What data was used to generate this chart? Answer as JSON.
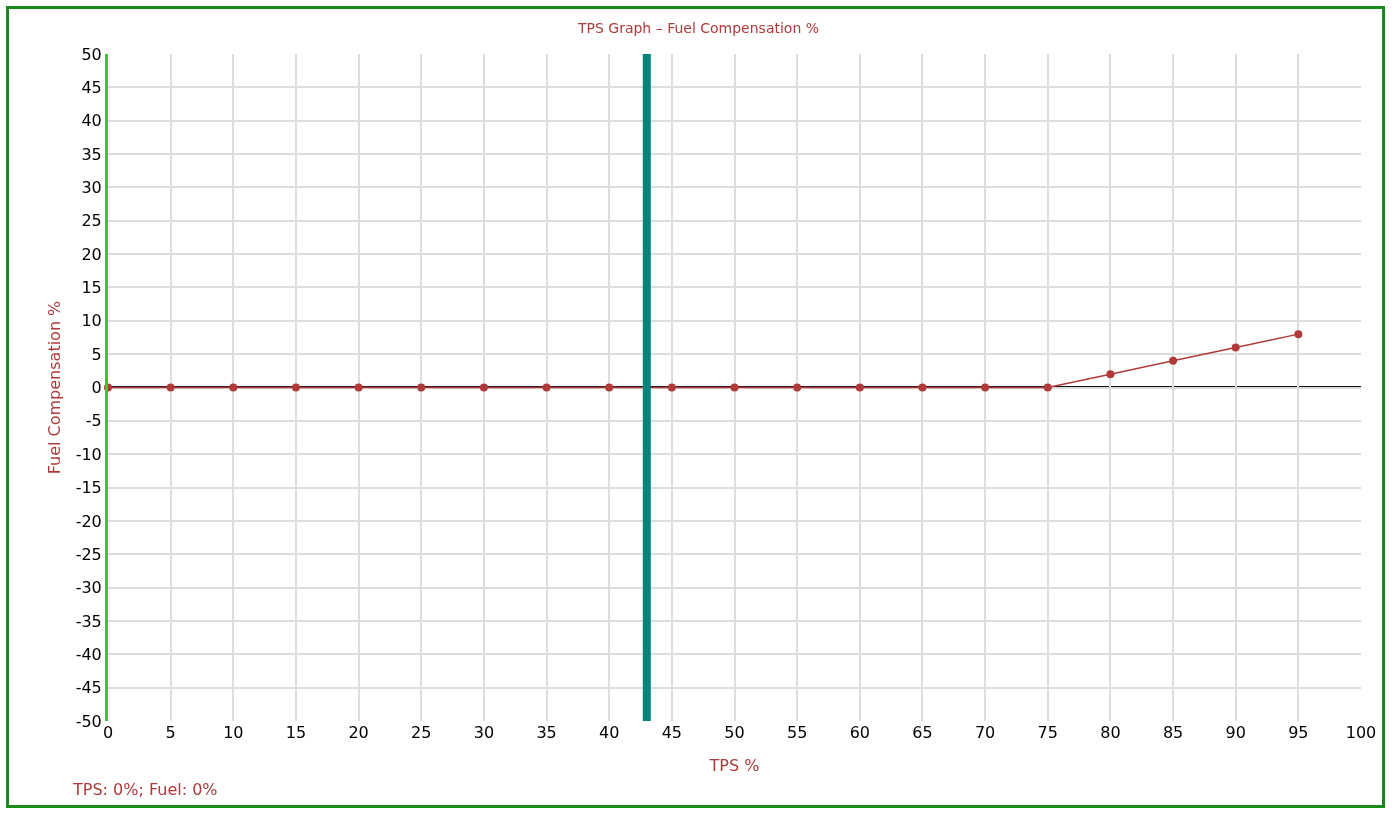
{
  "chart_data": {
    "type": "line",
    "title": "TPS Graph – Fuel Compensation %",
    "xlabel": "TPS %",
    "ylabel": "Fuel Compensation %",
    "annotations": [
      "TPS: 0%; Fuel: 0%"
    ],
    "x": [
      0,
      5,
      10,
      15,
      20,
      25,
      30,
      35,
      40,
      45,
      50,
      55,
      60,
      65,
      70,
      75,
      80,
      85,
      90,
      95
    ],
    "series": [
      {
        "color": "#b03a3a",
        "values": [
          0,
          0,
          0,
          0,
          0,
          0,
          0,
          0,
          0,
          0,
          0,
          0,
          0,
          0,
          0,
          0,
          2,
          4,
          6,
          8
        ]
      }
    ],
    "xlim": [
      0,
      100
    ],
    "xticks": [
      0,
      5,
      10,
      15,
      20,
      25,
      30,
      35,
      40,
      45,
      50,
      55,
      60,
      65,
      70,
      75,
      80,
      85,
      90,
      95,
      100
    ],
    "ylim": [
      -50,
      50
    ],
    "yticks": [
      -50,
      -45,
      -40,
      -35,
      -30,
      -25,
      -20,
      -15,
      -10,
      -5,
      0,
      5,
      10,
      15,
      20,
      25,
      30,
      35,
      40,
      45,
      50
    ],
    "ref_lines": [
      {
        "axis": "y",
        "value": 0,
        "color": "#111111"
      },
      {
        "axis": "x",
        "value": 43,
        "color": "#00857a"
      }
    ],
    "grid": true,
    "marker": "circle",
    "line_style": "solid",
    "legend": false
  }
}
